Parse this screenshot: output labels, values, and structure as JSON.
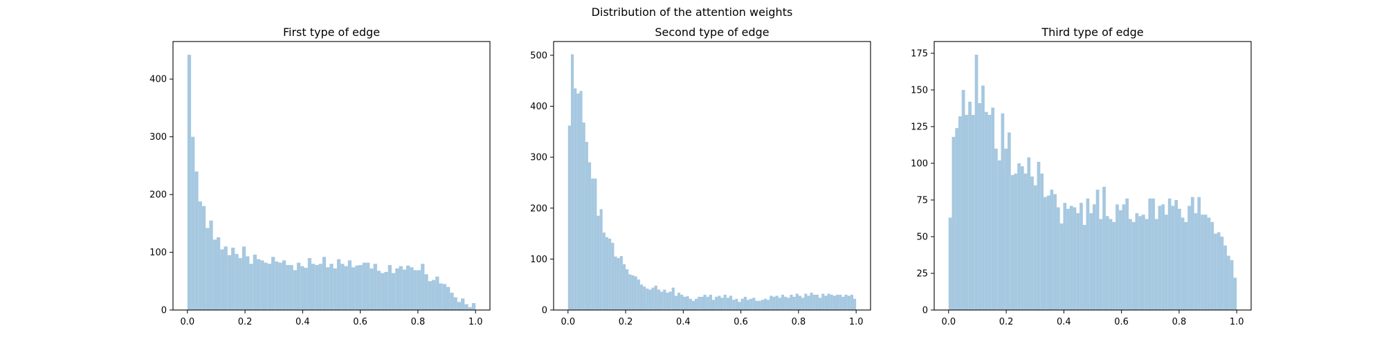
{
  "figure": {
    "suptitle": "Distribution of the attention weights"
  },
  "style": {
    "bar_color": "#a6c8e0",
    "axes_color": "#000000",
    "background": "#ffffff"
  },
  "chart_data": [
    {
      "type": "bar",
      "title": "First type of edge",
      "xlabel": "",
      "ylabel": "",
      "xlim": [
        -0.05,
        1.05
      ],
      "ylim": [
        0,
        465
      ],
      "xticks": [
        0.0,
        0.2,
        0.4,
        0.6,
        0.8,
        1.0
      ],
      "xtick_labels": [
        "0.0",
        "0.2",
        "0.4",
        "0.6",
        "0.8",
        "1.0"
      ],
      "yticks": [
        0,
        100,
        200,
        300,
        400
      ],
      "ytick_labels": [
        "0",
        "100",
        "200",
        "300",
        "400"
      ],
      "bin_range": [
        0,
        1
      ],
      "values": [
        442,
        300,
        240,
        188,
        180,
        142,
        155,
        122,
        126,
        105,
        110,
        95,
        108,
        97,
        90,
        110,
        93,
        80,
        96,
        88,
        86,
        82,
        80,
        92,
        84,
        82,
        86,
        78,
        78,
        69,
        82,
        76,
        73,
        90,
        80,
        78,
        80,
        92,
        74,
        80,
        72,
        88,
        80,
        76,
        86,
        74,
        77,
        78,
        82,
        82,
        72,
        80,
        68,
        64,
        66,
        78,
        64,
        72,
        76,
        70,
        77,
        74,
        69,
        69,
        80,
        62,
        50,
        52,
        58,
        46,
        45,
        40,
        30,
        22,
        14,
        20,
        10,
        5,
        12
      ]
    },
    {
      "type": "bar",
      "title": "Second type of edge",
      "xlabel": "",
      "ylabel": "",
      "xlim": [
        -0.05,
        1.05
      ],
      "ylim": [
        0,
        527
      ],
      "xticks": [
        0.0,
        0.2,
        0.4,
        0.6,
        0.8,
        1.0
      ],
      "xtick_labels": [
        "0.0",
        "0.2",
        "0.4",
        "0.6",
        "0.8",
        "1.0"
      ],
      "yticks": [
        0,
        100,
        200,
        300,
        400,
        500
      ],
      "ytick_labels": [
        "0",
        "100",
        "200",
        "300",
        "400",
        "500"
      ],
      "bin_range": [
        0,
        1
      ],
      "values": [
        362,
        502,
        435,
        425,
        430,
        368,
        330,
        290,
        258,
        258,
        185,
        198,
        152,
        143,
        140,
        132,
        105,
        102,
        106,
        90,
        80,
        70,
        68,
        66,
        60,
        50,
        46,
        42,
        40,
        44,
        48,
        40,
        36,
        40,
        34,
        36,
        44,
        28,
        34,
        30,
        26,
        27,
        22,
        18,
        22,
        26,
        26,
        30,
        26,
        30,
        20,
        26,
        28,
        24,
        30,
        24,
        28,
        20,
        22,
        16,
        22,
        26,
        20,
        22,
        24,
        18,
        18,
        20,
        22,
        20,
        28,
        26,
        28,
        24,
        30,
        26,
        24,
        30,
        26,
        32,
        28,
        24,
        32,
        28,
        34,
        30,
        30,
        24,
        32,
        28,
        32,
        30,
        28,
        30,
        30,
        26,
        30,
        28,
        30,
        22
      ]
    },
    {
      "type": "bar",
      "title": "Third type of edge",
      "xlabel": "",
      "ylabel": "",
      "xlim": [
        -0.05,
        1.05
      ],
      "ylim": [
        0,
        183
      ],
      "xticks": [
        0.0,
        0.2,
        0.4,
        0.6,
        0.8,
        1.0
      ],
      "xtick_labels": [
        "0.0",
        "0.2",
        "0.4",
        "0.6",
        "0.8",
        "1.0"
      ],
      "yticks": [
        0,
        25,
        50,
        75,
        100,
        125,
        150,
        175
      ],
      "ytick_labels": [
        "0",
        "25",
        "50",
        "75",
        "100",
        "125",
        "150",
        "175"
      ],
      "bin_range": [
        0,
        1
      ],
      "values": [
        63,
        118,
        124,
        132,
        150,
        133,
        142,
        133,
        174,
        141,
        153,
        135,
        133,
        138,
        110,
        102,
        134,
        110,
        121,
        92,
        93,
        100,
        98,
        93,
        104,
        91,
        85,
        101,
        93,
        77,
        78,
        82,
        79,
        70,
        59,
        73,
        69,
        71,
        70,
        66,
        73,
        58,
        76,
        66,
        72,
        82,
        62,
        84,
        64,
        62,
        60,
        72,
        68,
        72,
        76,
        62,
        60,
        66,
        64,
        65,
        62,
        76,
        76,
        62,
        71,
        72,
        65,
        76,
        71,
        75,
        69,
        63,
        60,
        71,
        77,
        66,
        77,
        65,
        65,
        63,
        60,
        52,
        53,
        50,
        44,
        37,
        34,
        22
      ]
    }
  ]
}
